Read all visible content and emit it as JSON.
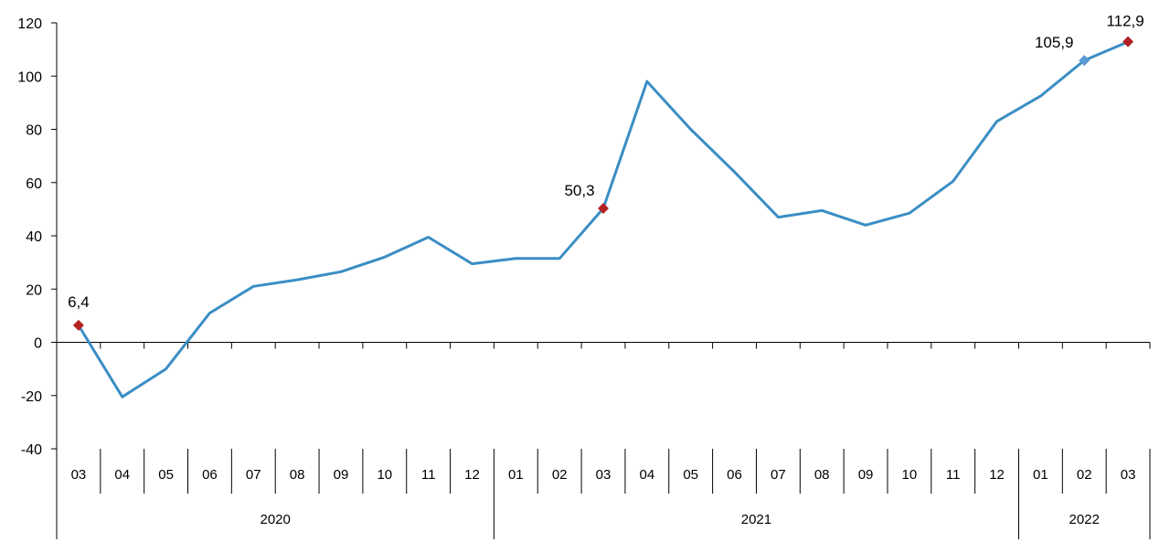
{
  "chart_data": {
    "type": "line",
    "title": "",
    "xlabel": "",
    "ylabel": "",
    "ylim": [
      -40,
      120
    ],
    "yticks": [
      "-40",
      "-20",
      "0",
      "20",
      "40",
      "60",
      "80",
      "100",
      "120"
    ],
    "categories": [
      "03",
      "04",
      "05",
      "06",
      "07",
      "08",
      "09",
      "10",
      "11",
      "12",
      "01",
      "02",
      "03",
      "04",
      "05",
      "06",
      "07",
      "08",
      "09",
      "10",
      "11",
      "12",
      "01",
      "02",
      "03"
    ],
    "year_groups": [
      {
        "label": "2020",
        "start": 0,
        "end": 9
      },
      {
        "label": "2021",
        "start": 10,
        "end": 21
      },
      {
        "label": "2022",
        "start": 22,
        "end": 24
      }
    ],
    "series": [
      {
        "color": "#3b8ec4",
        "values": [
          6.4,
          -20.5,
          -10,
          11,
          21,
          23.5,
          26.5,
          32,
          39.5,
          29.5,
          31.5,
          31.5,
          50.3,
          98,
          80,
          64,
          47,
          49.5,
          44,
          48.5,
          60.5,
          83,
          92.5,
          105.9,
          112.9
        ]
      }
    ],
    "markers": [
      {
        "index": 0,
        "label": "6,4",
        "color": "#b22222",
        "shape": "diamond"
      },
      {
        "index": 12,
        "label": "50,3",
        "color": "#b22222",
        "shape": "diamond"
      },
      {
        "index": 23,
        "label": "105,9",
        "color": "#5b9bd5",
        "shape": "diamond"
      },
      {
        "index": 24,
        "label": "112,9",
        "color": "#b22222",
        "shape": "diamond"
      }
    ],
    "grid": false,
    "legend": "none"
  }
}
